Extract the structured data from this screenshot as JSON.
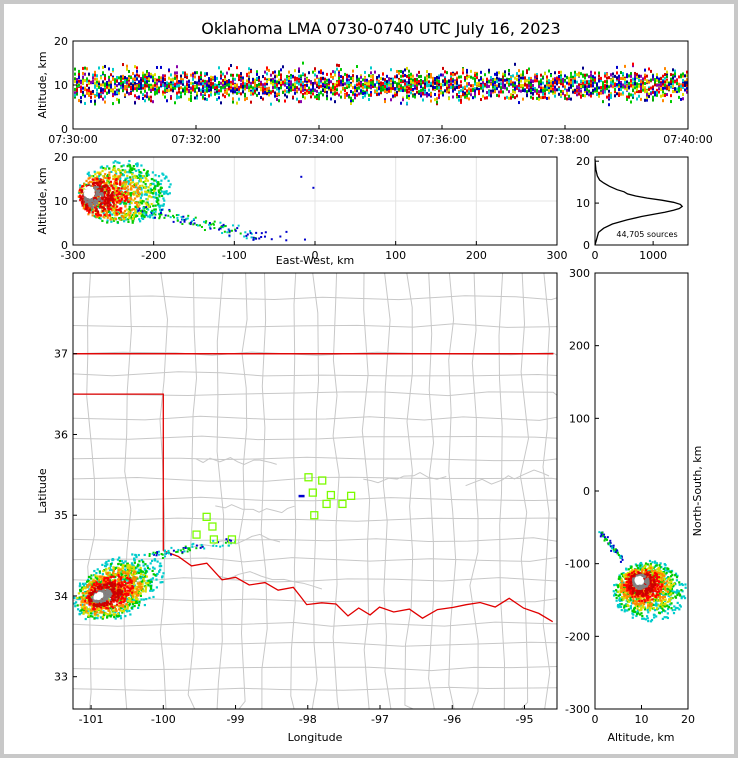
{
  "figure": {
    "title": "Oklahoma LMA 0730-0740 UTC July 16, 2023",
    "source_count_label": "44,705 sources"
  },
  "colors": {
    "state_border": "#e00000",
    "county_lines": "#c8c8c8",
    "station_marker": "#7cfc00",
    "histogram_line": "#000000",
    "density_scale": [
      "#0000cc",
      "#00cccc",
      "#00cc00",
      "#dddd00",
      "#ff8800",
      "#ff0000",
      "#cc0000",
      "#808080",
      "#ffffff"
    ]
  },
  "chart_data": [
    {
      "id": "time-height",
      "type": "heatmap",
      "title": "",
      "xlabel": "",
      "ylabel": "Altitude, km",
      "xlim": [
        "07:30:00",
        "07:40:00"
      ],
      "ylim": [
        0,
        20
      ],
      "x_ticks": [
        "07:30:00",
        "07:32:00",
        "07:34:00",
        "07:36:00",
        "07:38:00",
        "07:40:00"
      ],
      "y_ticks": [
        0,
        10,
        20
      ],
      "description_values": {
        "core_altitude_km_min": 5,
        "core_altitude_km_max": 15,
        "peak_altitude_km": 10
      }
    },
    {
      "id": "ew-altitude",
      "type": "heatmap",
      "xlabel": "East-West, km",
      "ylabel": "Altitude, km",
      "xlim": [
        -300,
        300
      ],
      "ylim": [
        0,
        20
      ],
      "x_ticks": [
        -300,
        -200,
        -100,
        0,
        100,
        200,
        300
      ],
      "y_ticks": [
        0,
        10,
        20
      ],
      "core": {
        "x_km": [
          -295,
          -190
        ],
        "altitude_km": [
          6,
          18
        ]
      }
    },
    {
      "id": "altitude-histogram",
      "type": "line",
      "xlabel": "",
      "ylabel": "",
      "xlim": [
        0,
        1600
      ],
      "ylim": [
        0,
        21
      ],
      "x_ticks": [
        0,
        1000
      ],
      "y_ticks": [
        0,
        10,
        20
      ],
      "x": [
        0,
        20,
        60,
        150,
        300,
        550,
        800,
        1000,
        1200,
        1350,
        1450,
        1500,
        1470,
        1350,
        1150,
        900,
        700,
        560,
        500,
        380,
        250,
        150,
        80,
        40,
        15,
        5,
        0
      ],
      "y": [
        0,
        1,
        3,
        4,
        5,
        6,
        6.8,
        7.3,
        7.8,
        8.3,
        8.7,
        9.2,
        9.7,
        10.2,
        10.7,
        11.2,
        11.7,
        12.2,
        12.7,
        13.2,
        14,
        14.8,
        15.5,
        16.5,
        18,
        19.5,
        20.5
      ]
    },
    {
      "id": "plan-view",
      "type": "heatmap",
      "xlabel": "Longitude",
      "ylabel": "Latitude",
      "xlim": [
        -101.25,
        -94.55
      ],
      "ylim": [
        32.6,
        38.0
      ],
      "x_ticks": [
        -101,
        -100,
        -99,
        -98,
        -97,
        -96,
        -95
      ],
      "y_ticks": [
        33,
        34,
        35,
        36,
        37
      ],
      "core": {
        "lon": [
          -101.2,
          -100.0
        ],
        "lat": [
          33.5,
          34.6
        ]
      },
      "stations": [
        {
          "lon": -97.99,
          "lat": 35.47
        },
        {
          "lon": -97.8,
          "lat": 35.43
        },
        {
          "lon": -97.93,
          "lat": 35.28
        },
        {
          "lon": -97.68,
          "lat": 35.25
        },
        {
          "lon": -97.74,
          "lat": 35.14
        },
        {
          "lon": -97.52,
          "lat": 35.14
        },
        {
          "lon": -97.4,
          "lat": 35.24
        },
        {
          "lon": -97.91,
          "lat": 35.0
        },
        {
          "lon": -99.4,
          "lat": 34.98
        },
        {
          "lon": -99.32,
          "lat": 34.86
        },
        {
          "lon": -99.54,
          "lat": 34.76
        },
        {
          "lon": -99.3,
          "lat": 34.7
        },
        {
          "lon": -99.05,
          "lat": 34.7
        }
      ]
    },
    {
      "id": "altitude-ns",
      "type": "heatmap",
      "xlabel": "Altitude, km",
      "ylabel": "North-South, km",
      "xlim": [
        0,
        20
      ],
      "ylim": [
        -300,
        300
      ],
      "x_ticks": [
        0,
        10,
        20
      ],
      "y_ticks": [
        -300,
        -200,
        -100,
        0,
        100,
        200,
        300
      ],
      "core": {
        "altitude_km": [
          4,
          18
        ],
        "ns_km": [
          -185,
          -90
        ]
      }
    }
  ]
}
